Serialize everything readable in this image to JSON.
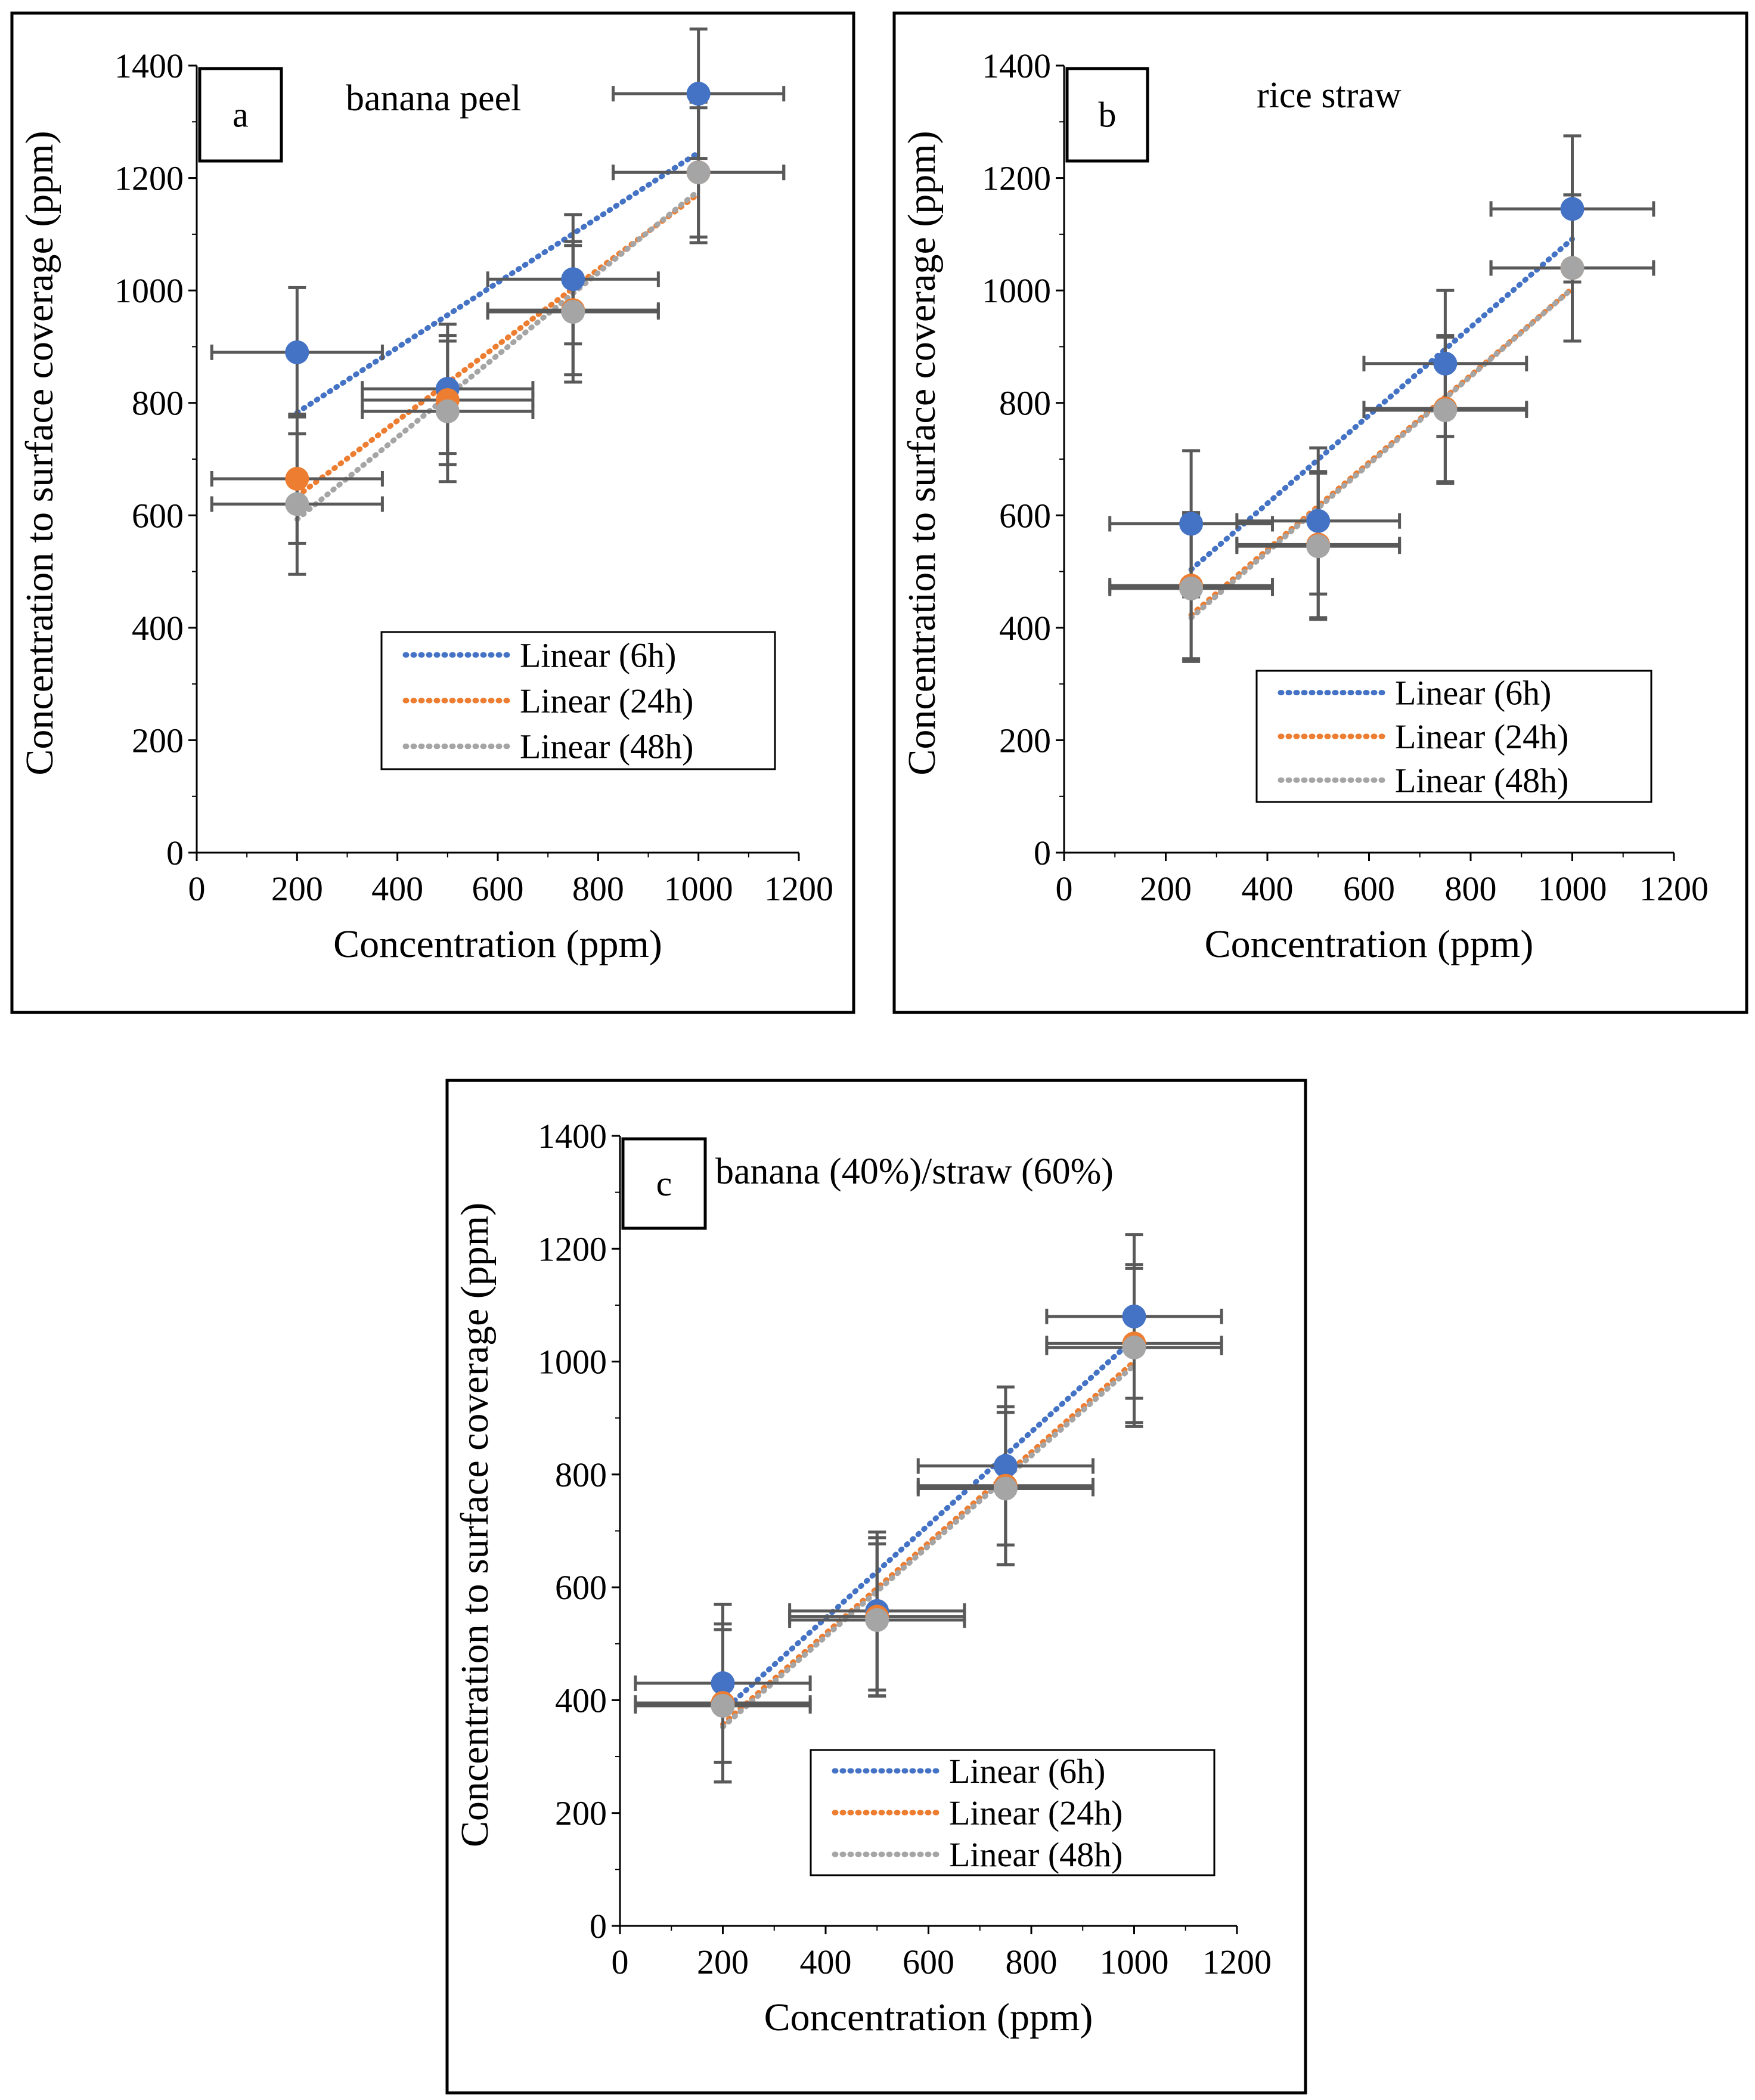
{
  "colors": {
    "series_6h": "#4472c4",
    "series_24h": "#ed7d31",
    "series_48h": "#a5a5a5",
    "errorbar": "#595959",
    "frame": "#000000"
  },
  "chart_data": [
    {
      "type": "scatter",
      "panel_label": "a",
      "title": "banana peel",
      "xlabel": "Concentration (ppm)",
      "ylabel": "Concentration to surface coverage (ppm)",
      "xlim": [
        0,
        1200
      ],
      "ylim": [
        0,
        1400
      ],
      "xticks": [
        "0",
        "200",
        "400",
        "600",
        "800",
        "1000",
        "1200"
      ],
      "yticks": [
        "0",
        "200",
        "400",
        "600",
        "800",
        "1000",
        "1200",
        "1400"
      ],
      "grid": false,
      "legend_position": "lower-right",
      "x_error": 170,
      "series": [
        {
          "name": "6h",
          "legend_label": "Linear (6h)",
          "x": [
            200,
            500,
            750,
            1000
          ],
          "y": [
            890,
            825,
            1020,
            1350
          ],
          "y_error": [
            115,
            115,
            115,
            115
          ]
        },
        {
          "name": "24h",
          "legend_label": "Linear (24h)",
          "x": [
            200,
            500,
            750,
            1000
          ],
          "y": [
            665,
            805,
            965,
            1210
          ],
          "y_error": [
            115,
            115,
            115,
            115
          ]
        },
        {
          "name": "48h",
          "legend_label": "Linear (48h)",
          "x": [
            200,
            500,
            750,
            1000
          ],
          "y": [
            620,
            785,
            962,
            1210
          ],
          "y_error": [
            125,
            125,
            125,
            125
          ]
        }
      ]
    },
    {
      "type": "scatter",
      "panel_label": "b",
      "title": "rice straw",
      "xlabel": "Concentration (ppm)",
      "ylabel": "Concentration to surface coverage (ppm)",
      "xlim": [
        0,
        1200
      ],
      "ylim": [
        0,
        1400
      ],
      "xticks": [
        "0",
        "200",
        "400",
        "600",
        "800",
        "1000",
        "1200"
      ],
      "yticks": [
        "0",
        "200",
        "400",
        "600",
        "800",
        "1000",
        "1200",
        "1400"
      ],
      "grid": false,
      "legend_position": "lower-right",
      "x_error": 160,
      "series": [
        {
          "name": "6h",
          "legend_label": "Linear (6h)",
          "x": [
            250,
            500,
            750,
            1000
          ],
          "y": [
            585,
            590,
            870,
            1145
          ],
          "y_error": [
            130,
            130,
            130,
            130
          ]
        },
        {
          "name": "24h",
          "legend_label": "Linear (24h)",
          "x": [
            250,
            500,
            750,
            1000
          ],
          "y": [
            475,
            548,
            790,
            1040
          ],
          "y_error": [
            130,
            130,
            130,
            130
          ]
        },
        {
          "name": "48h",
          "legend_label": "Linear (48h)",
          "x": [
            250,
            500,
            750,
            1000
          ],
          "y": [
            470,
            545,
            787,
            1040
          ],
          "y_error": [
            130,
            130,
            130,
            130
          ]
        }
      ]
    },
    {
      "type": "scatter",
      "panel_label": "c",
      "title": "banana (40%)/straw (60%)",
      "xlabel": "Concentration (ppm)",
      "ylabel": "Concentration to surface coverage (ppm)",
      "xlim": [
        0,
        1200
      ],
      "ylim": [
        0,
        1400
      ],
      "xticks": [
        "0",
        "200",
        "400",
        "600",
        "800",
        "1000",
        "1200"
      ],
      "yticks": [
        "0",
        "200",
        "400",
        "600",
        "800",
        "1000",
        "1200",
        "1400"
      ],
      "grid": false,
      "legend_position": "lower-right",
      "x_error": 170,
      "series": [
        {
          "name": "6h",
          "legend_label": "Linear (6h)",
          "x": [
            200,
            500,
            750,
            1000
          ],
          "y": [
            430,
            558,
            815,
            1080
          ],
          "y_error": [
            140,
            140,
            140,
            145
          ]
        },
        {
          "name": "24h",
          "legend_label": "Linear (24h)",
          "x": [
            200,
            500,
            750,
            1000
          ],
          "y": [
            395,
            548,
            780,
            1032
          ],
          "y_error": [
            140,
            140,
            140,
            140
          ]
        },
        {
          "name": "48h",
          "legend_label": "Linear (48h)",
          "x": [
            200,
            500,
            750,
            1000
          ],
          "y": [
            390,
            542,
            775,
            1025
          ],
          "y_error": [
            135,
            135,
            135,
            140
          ]
        }
      ]
    }
  ]
}
